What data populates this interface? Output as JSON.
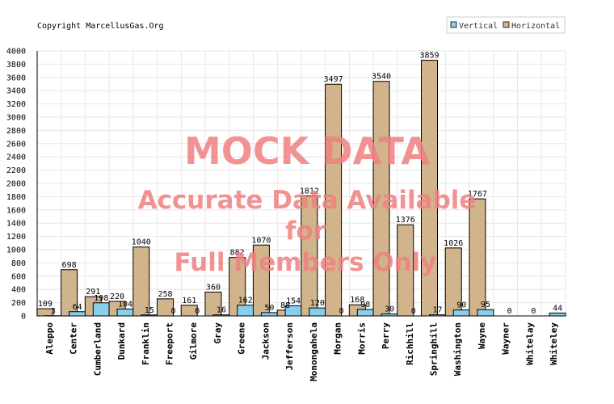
{
  "copyright": "Copyright MarcellusGas.Org",
  "watermark": {
    "line1": "MOCK DATA",
    "line2": "Accurate Data Available",
    "line3": "for",
    "line4": "Full Members Only"
  },
  "colors": {
    "vertical": "#87ceeb",
    "horizontal": "#d2b48c",
    "watermark": "#f08080",
    "grid": "#e6e6e6"
  },
  "chart_data": {
    "type": "bar",
    "title": "",
    "xlabel": "",
    "ylabel": "",
    "ylim": [
      0,
      4000
    ],
    "ytick_step": 200,
    "grid": true,
    "legend_position": "top-right",
    "categories": [
      "Aleppo",
      "Center",
      "Cumberland",
      "Dunkard",
      "Franklin",
      "Freeport",
      "Gilmore",
      "Gray",
      "Greene",
      "Jackson",
      "Jefferson",
      "Monongahela",
      "Morgan",
      "Morris",
      "Perry",
      "Richhill",
      "Springhill",
      "Washington",
      "Wayne",
      "Wayner",
      "Whitelay",
      "Whiteley"
    ],
    "series": [
      {
        "name": "Vertical",
        "values": [
          3,
          64,
          198,
          104,
          15,
          0,
          0,
          16,
          162,
          50,
          154,
          120,
          0,
          98,
          30,
          0,
          17,
          90,
          95,
          0,
          0,
          44
        ]
      },
      {
        "name": "Horizontal",
        "values": [
          109,
          698,
          291,
          220,
          1040,
          258,
          161,
          360,
          882,
          1070,
          88,
          1812,
          3497,
          168,
          3540,
          1376,
          3859,
          1026,
          1767,
          0,
          0,
          0
        ]
      }
    ]
  }
}
